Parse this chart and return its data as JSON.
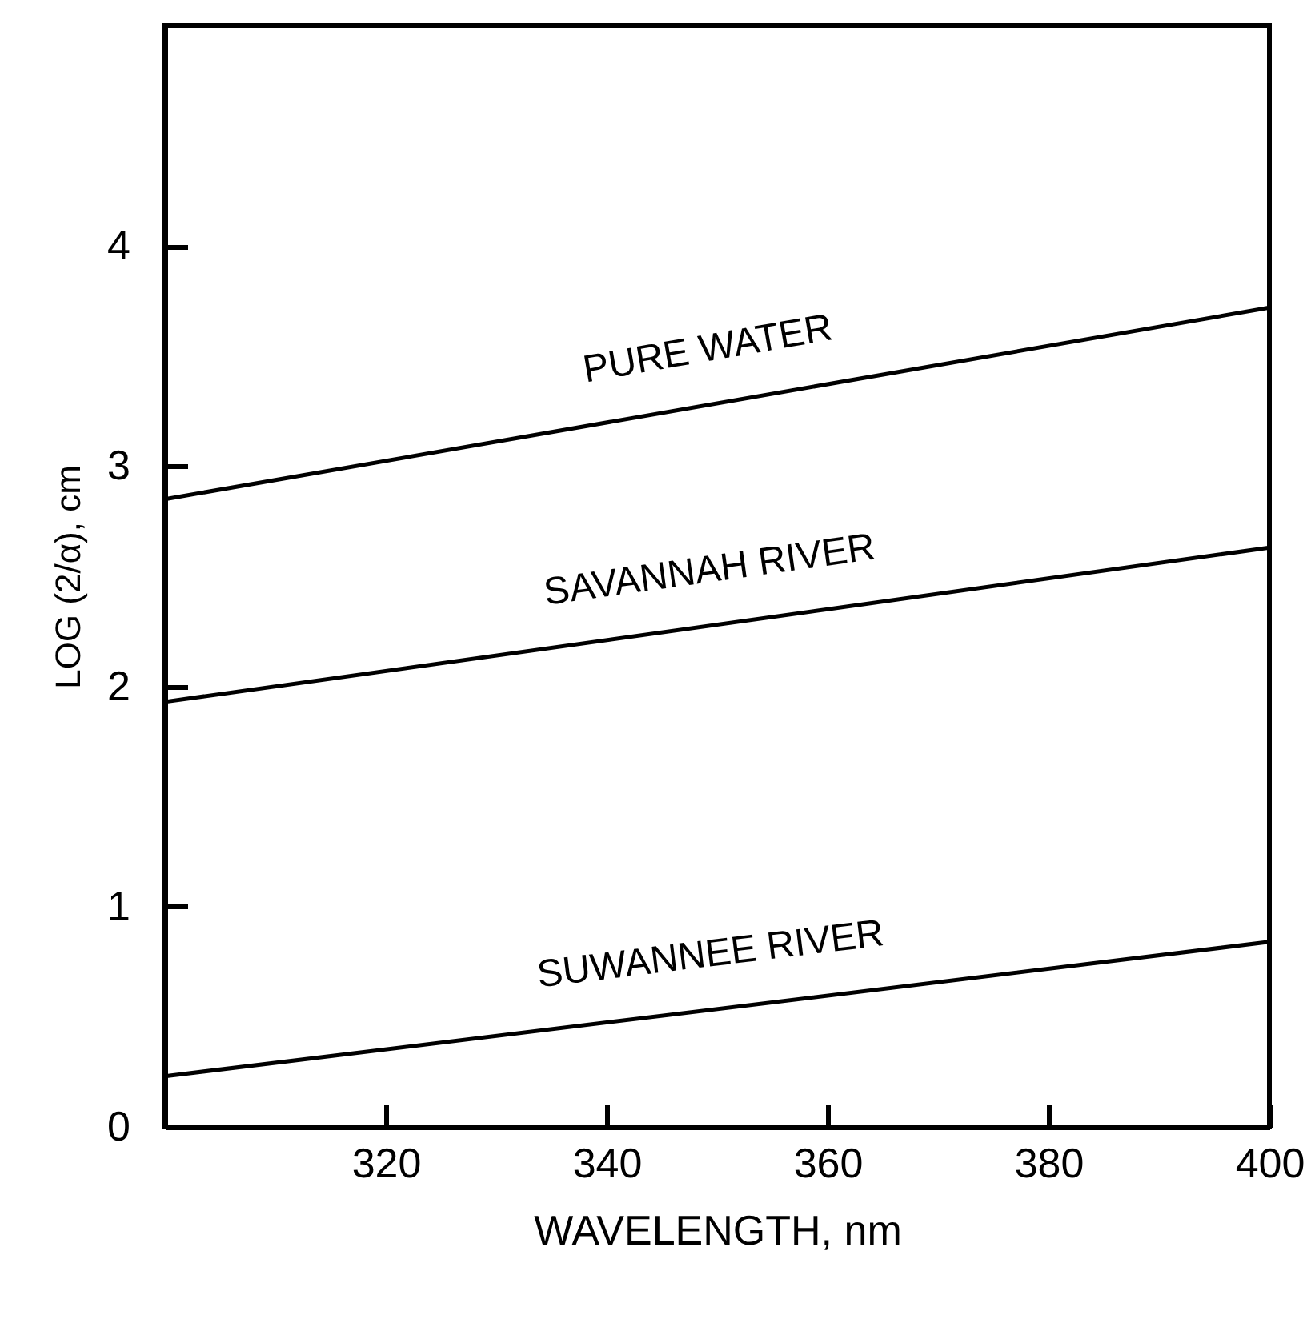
{
  "chart_data": {
    "type": "line",
    "xlabel": "WAVELENGTH, nm",
    "ylabel": "LOG (2/α), cm",
    "x": [
      300,
      400
    ],
    "series": [
      {
        "name": "PURE WATER",
        "color": "#000000",
        "values": [
          2.85,
          3.72
        ]
      },
      {
        "name": "SAVANNAH RIVER",
        "color": "#000000",
        "values": [
          1.93,
          2.63
        ]
      },
      {
        "name": "SUWANNEE RIVER",
        "color": "#000000",
        "values": [
          0.23,
          0.84
        ]
      }
    ],
    "xlim": [
      300,
      400
    ],
    "xticks": [
      320,
      340,
      360,
      380,
      400
    ],
    "ylim": [
      0,
      5
    ],
    "yticks": [
      0,
      1,
      2,
      3,
      4
    ],
    "grid": false,
    "marker": "none",
    "line_style": "solid"
  }
}
